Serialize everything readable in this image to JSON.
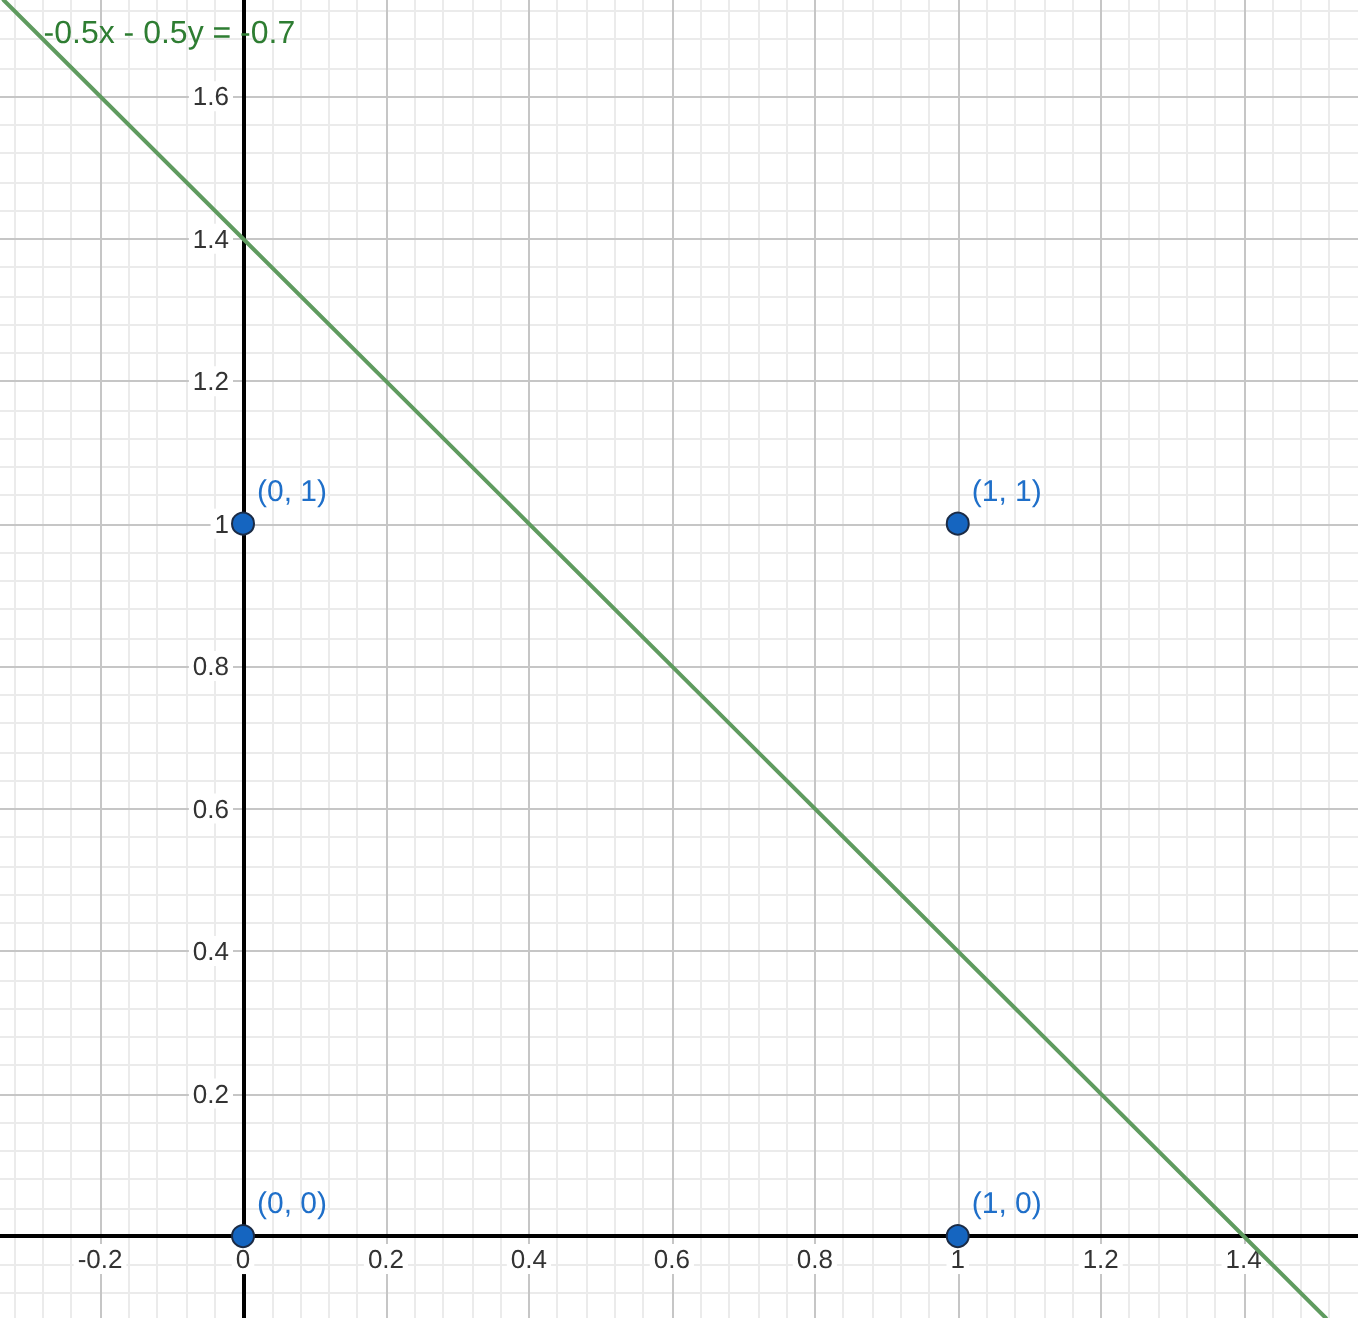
{
  "chart_data": {
    "type": "scatter",
    "xlim": [
      -0.34,
      1.56
    ],
    "ylim": [
      -0.115,
      1.735
    ],
    "xticks": [
      -0.2,
      0,
      0.2,
      0.4,
      0.6,
      0.8,
      1,
      1.2,
      1.4
    ],
    "yticks": [
      0.2,
      0.4,
      0.6,
      0.8,
      1,
      1.2,
      1.4,
      1.6
    ],
    "grid": true,
    "series": [
      {
        "name": "-0.5x - 0.5y = -0.7",
        "type": "line",
        "color": "#5f9b5f",
        "x": [
          -0.335,
          1.515
        ],
        "values": [
          1.735,
          -0.115
        ],
        "marker": "none",
        "line_style": "solid"
      },
      {
        "color": "#1565c0",
        "x": [
          0,
          0,
          1,
          1
        ],
        "values": [
          0,
          1,
          0,
          1
        ],
        "value_labels": [
          "(0, 0)",
          "(0, 1)",
          "(1, 0)",
          "(1, 1)"
        ],
        "marker": "circle"
      }
    ]
  }
}
